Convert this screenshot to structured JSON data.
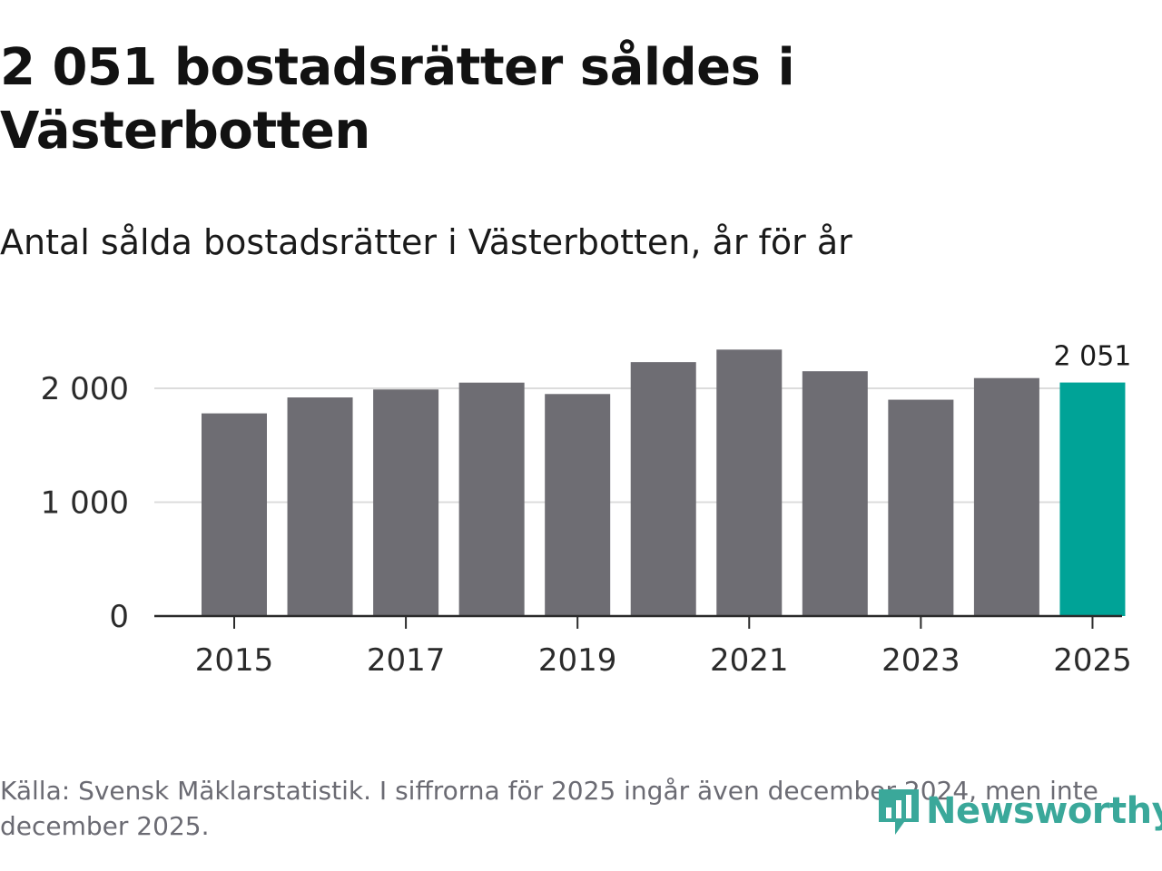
{
  "title": "2 051 bostadsrätter såldes i Västerbotten",
  "subtitle": "Antal sålda bostadsrätter i Västerbotten, år för år",
  "source": "Källa: Svensk Mäklarstatistik. I siffrorna för 2025 ingår även december 2024, men inte december 2025.",
  "logo_text": "Newsworthy",
  "colors": {
    "bar": "#6e6d73",
    "highlight": "#00a397",
    "logo": "#3aa89a"
  },
  "chart_data": {
    "type": "bar",
    "title": "2 051 bostadsrätter såldes i Västerbotten",
    "subtitle": "Antal sålda bostadsrätter i Västerbotten, år för år",
    "xlabel": "",
    "ylabel": "",
    "categories": [
      "2015",
      "2016",
      "2017",
      "2018",
      "2019",
      "2020",
      "2021",
      "2022",
      "2023",
      "2024",
      "2025"
    ],
    "values": [
      1780,
      1920,
      1990,
      2050,
      1950,
      2230,
      2340,
      2150,
      1900,
      2090,
      2051
    ],
    "highlight_index": 10,
    "ylim": [
      0,
      2400
    ],
    "yticks": [
      0,
      1000,
      2000
    ],
    "ytick_labels": [
      "0",
      "1 000",
      "2 000"
    ],
    "xtick_labels": [
      "2015",
      "2017",
      "2019",
      "2021",
      "2023",
      "2025"
    ],
    "annotations": [
      {
        "category": "2025",
        "text": "2 051"
      }
    ],
    "grid": true,
    "legend": "none"
  }
}
